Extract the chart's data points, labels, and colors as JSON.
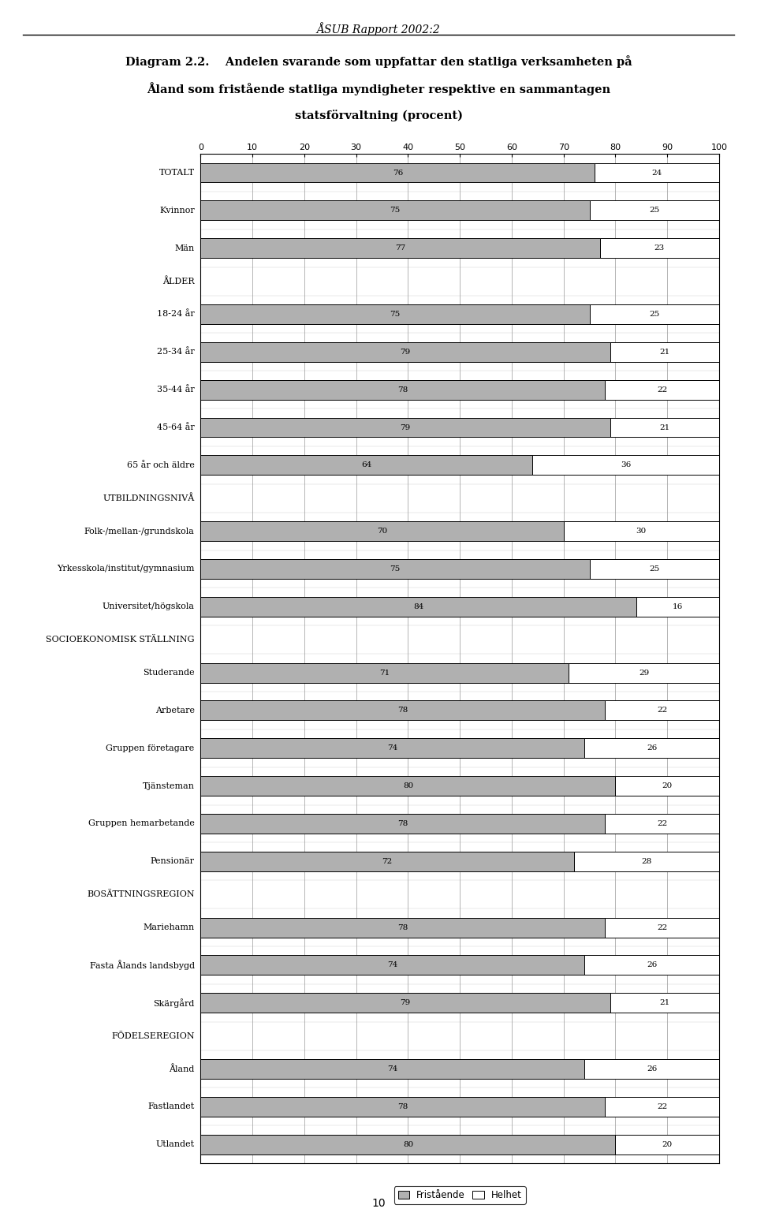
{
  "header": "ÅSUB Rapport 2002:2",
  "title_line1": "Diagram 2.2.    Andelen svarande som uppfattar den statliga verksamheten på",
  "title_line2": "Åland som fristående statliga myndigheter respektive en sammantagen",
  "title_line3": "statsförvaltning (procent)",
  "page_number": "10",
  "categories": [
    "TOTALT",
    "Kvinnor",
    "Män",
    "ÅLDER",
    "18-24 år",
    "25-34 år",
    "35-44 år",
    "45-64 år",
    "65 år och äldre",
    "UTBILDNINGSNIVÅ",
    "Folk-/mellan-/grundskola",
    "Yrkesskola/institut/gymnasium",
    "Universitet/högskola",
    "SOCIOEKONOMISK STÄLLNING",
    "Studerande",
    "Arbetare",
    "Gruppen företagare",
    "Tjänsteman",
    "Gruppen hemarbetande",
    "Pensionär",
    "BOSÄTTNINGSREGION",
    "Mariehamn",
    "Fasta Ålands landsbygd",
    "Skärgård",
    "FÖDELSEREGION",
    "Åland",
    "Fastlandet",
    "Utlandet"
  ],
  "fristående": [
    76,
    75,
    77,
    null,
    75,
    79,
    78,
    79,
    64,
    null,
    70,
    75,
    84,
    null,
    71,
    78,
    74,
    80,
    78,
    72,
    null,
    78,
    74,
    79,
    null,
    74,
    78,
    80
  ],
  "helhet": [
    24,
    25,
    23,
    null,
    25,
    21,
    22,
    21,
    36,
    null,
    30,
    25,
    16,
    null,
    29,
    22,
    26,
    20,
    22,
    28,
    null,
    22,
    26,
    21,
    null,
    26,
    22,
    20
  ],
  "header_rows": [
    3,
    9,
    13,
    20,
    24
  ],
  "bar_color_fristående": "#b0b0b0",
  "bar_color_helhet": "#ffffff",
  "bar_edgecolor": "#000000",
  "xlim": [
    0,
    100
  ],
  "xticks": [
    0,
    10,
    20,
    30,
    40,
    50,
    60,
    70,
    80,
    90,
    100
  ],
  "label_fontsize": 8.0,
  "header_label_fontsize": 8.0,
  "tick_fontsize": 8.0,
  "value_fontsize": 7.5,
  "title_fontsize": 10.5,
  "legend_labels": [
    "Fristående",
    "Helhet"
  ],
  "figsize": [
    9.6,
    15.61
  ],
  "dpi": 100
}
